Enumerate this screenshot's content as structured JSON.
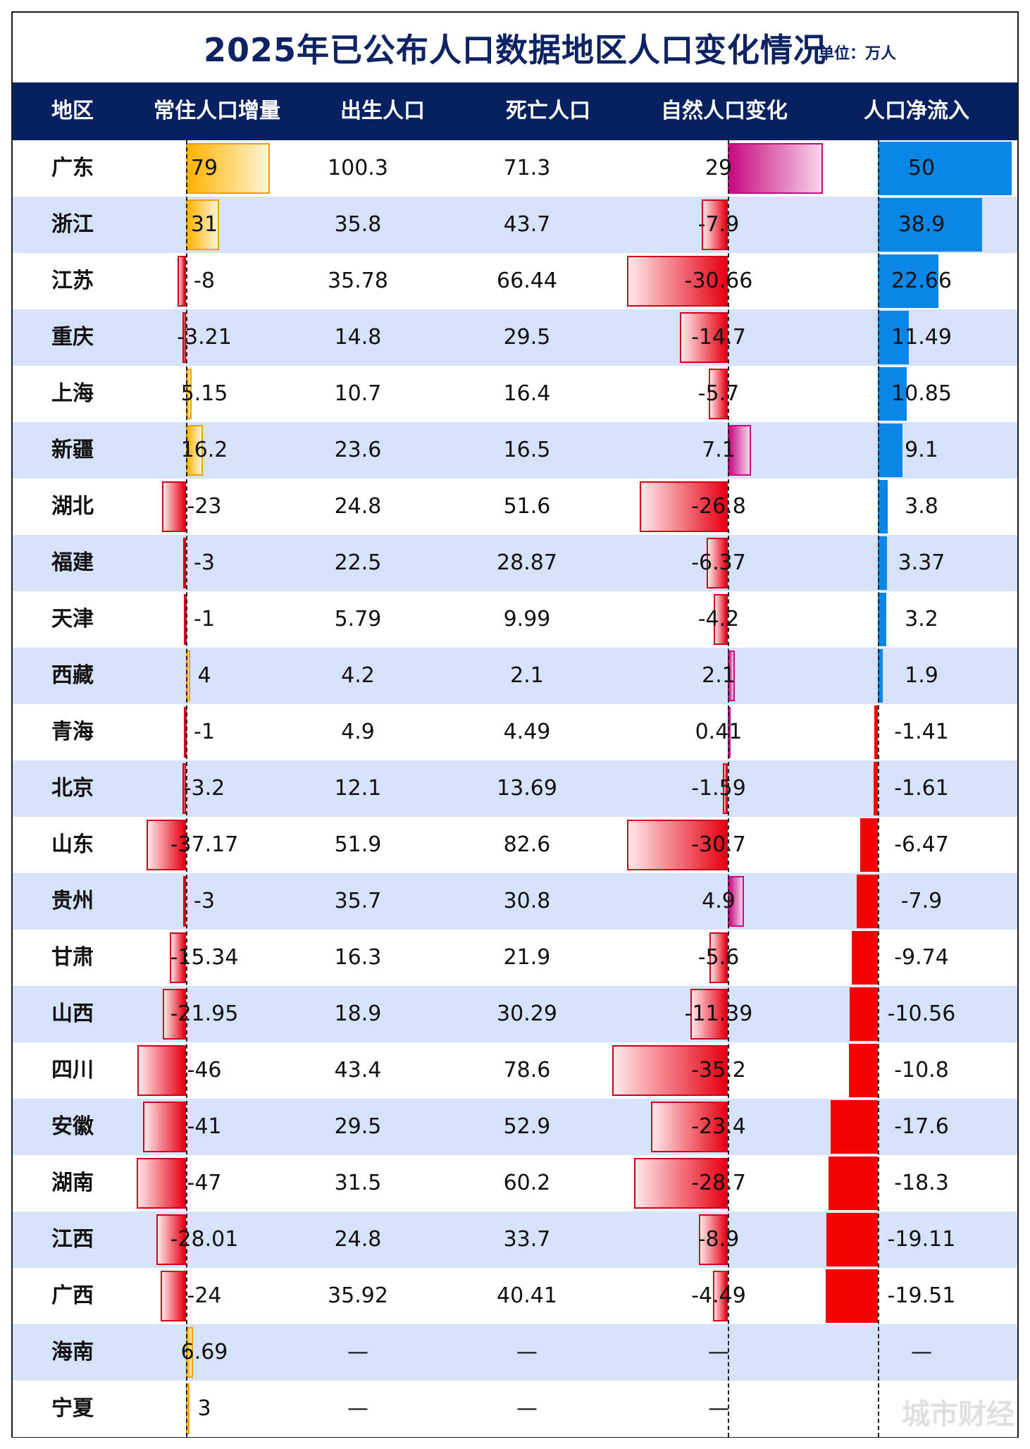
{
  "title": "2025年已公布人口数据地区人口变化情况",
  "unit": "单位：万人",
  "watermark": "城市财经",
  "columns": [
    "地区",
    "常住人口增量",
    "出生人口",
    "死亡人口",
    "自然人口变化",
    "人口净流入"
  ],
  "colors": {
    "header_bg": "#062060",
    "stripe": "#d6e1fa",
    "growth_positive": "#ffb300",
    "negative": "#e60012",
    "natural_positive": "#c70a80",
    "inflow_positive": "#0a86e6",
    "inflow_negative": "#f40000"
  },
  "chart_data": {
    "type": "table",
    "rows": [
      {
        "region": "广东",
        "growth": "79",
        "births": "100.3",
        "deaths": "71.3",
        "natural": "29",
        "inflow": "50"
      },
      {
        "region": "浙江",
        "growth": "31",
        "births": "35.8",
        "deaths": "43.7",
        "natural": "-7.9",
        "inflow": "38.9"
      },
      {
        "region": "江苏",
        "growth": "-8",
        "births": "35.78",
        "deaths": "66.44",
        "natural": "-30.66",
        "inflow": "22.66"
      },
      {
        "region": "重庆",
        "growth": "-3.21",
        "births": "14.8",
        "deaths": "29.5",
        "natural": "-14.7",
        "inflow": "11.49"
      },
      {
        "region": "上海",
        "growth": "5.15",
        "births": "10.7",
        "deaths": "16.4",
        "natural": "-5.7",
        "inflow": "10.85"
      },
      {
        "region": "新疆",
        "growth": "16.2",
        "births": "23.6",
        "deaths": "16.5",
        "natural": "7.1",
        "inflow": "9.1"
      },
      {
        "region": "湖北",
        "growth": "-23",
        "births": "24.8",
        "deaths": "51.6",
        "natural": "-26.8",
        "inflow": "3.8"
      },
      {
        "region": "福建",
        "growth": "-3",
        "births": "22.5",
        "deaths": "28.87",
        "natural": "-6.37",
        "inflow": "3.37"
      },
      {
        "region": "天津",
        "growth": "-1",
        "births": "5.79",
        "deaths": "9.99",
        "natural": "-4.2",
        "inflow": "3.2"
      },
      {
        "region": "西藏",
        "growth": "4",
        "births": "4.2",
        "deaths": "2.1",
        "natural": "2.1",
        "inflow": "1.9"
      },
      {
        "region": "青海",
        "growth": "-1",
        "births": "4.9",
        "deaths": "4.49",
        "natural": "0.41",
        "inflow": "-1.41"
      },
      {
        "region": "北京",
        "growth": "-3.2",
        "births": "12.1",
        "deaths": "13.69",
        "natural": "-1.59",
        "inflow": "-1.61"
      },
      {
        "region": "山东",
        "growth": "-37.17",
        "births": "51.9",
        "deaths": "82.6",
        "natural": "-30.7",
        "inflow": "-6.47"
      },
      {
        "region": "贵州",
        "growth": "-3",
        "births": "35.7",
        "deaths": "30.8",
        "natural": "4.9",
        "inflow": "-7.9"
      },
      {
        "region": "甘肃",
        "growth": "-15.34",
        "births": "16.3",
        "deaths": "21.9",
        "natural": "-5.6",
        "inflow": "-9.74"
      },
      {
        "region": "山西",
        "growth": "-21.95",
        "births": "18.9",
        "deaths": "30.29",
        "natural": "-11.39",
        "inflow": "-10.56"
      },
      {
        "region": "四川",
        "growth": "-46",
        "births": "43.4",
        "deaths": "78.6",
        "natural": "-35.2",
        "inflow": "-10.8"
      },
      {
        "region": "安徽",
        "growth": "-41",
        "births": "29.5",
        "deaths": "52.9",
        "natural": "-23.4",
        "inflow": "-17.6"
      },
      {
        "region": "湖南",
        "growth": "-47",
        "births": "31.5",
        "deaths": "60.2",
        "natural": "-28.7",
        "inflow": "-18.3"
      },
      {
        "region": "江西",
        "growth": "-28.01",
        "births": "24.8",
        "deaths": "33.7",
        "natural": "-8.9",
        "inflow": "-19.11"
      },
      {
        "region": "广西",
        "growth": "-24",
        "births": "35.92",
        "deaths": "40.41",
        "natural": "-4.49",
        "inflow": "-19.51"
      },
      {
        "region": "海南",
        "growth": "6.69",
        "births": "—",
        "deaths": "—",
        "natural": "—",
        "inflow": "—"
      },
      {
        "region": "宁夏",
        "growth": "3",
        "births": "—",
        "deaths": "—",
        "natural": "—",
        "inflow": ""
      }
    ]
  }
}
